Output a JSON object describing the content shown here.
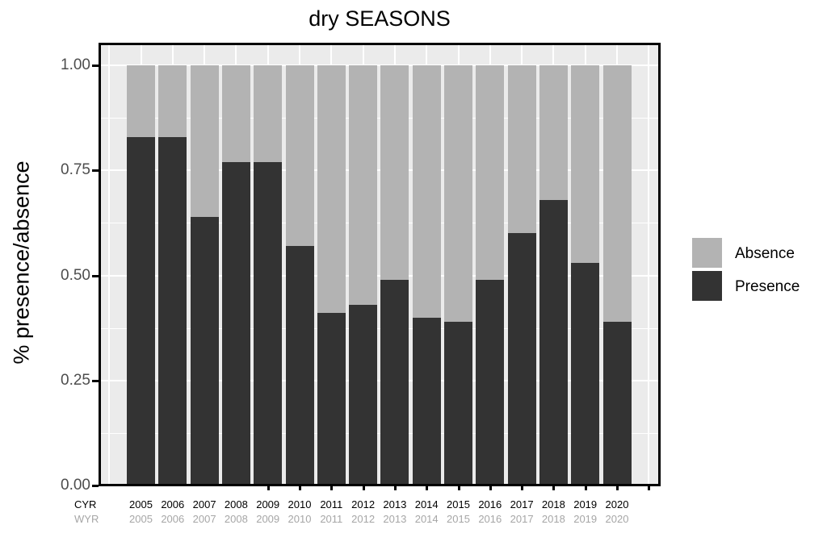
{
  "chart_data": {
    "type": "bar",
    "stacked": true,
    "title": "dry SEASONS",
    "xlabel": "",
    "ylabel": "% presence/absence",
    "ylim": [
      0,
      1
    ],
    "yticks": [
      "0.00",
      "0.25",
      "0.50",
      "0.75",
      "1.00"
    ],
    "categories": [
      "2005",
      "2006",
      "2007",
      "2008",
      "2009",
      "2010",
      "2011",
      "2012",
      "2013",
      "2014",
      "2015",
      "2016",
      "2017",
      "2018",
      "2019",
      "2020"
    ],
    "x_axis_rows": [
      {
        "label": "CYR",
        "values": [
          "2005",
          "2006",
          "2007",
          "2008",
          "2009",
          "2010",
          "2011",
          "2012",
          "2013",
          "2014",
          "2015",
          "2016",
          "2017",
          "2018",
          "2019",
          "2020"
        ]
      },
      {
        "label": "WYR",
        "values": [
          "2005",
          "2006",
          "2007",
          "2008",
          "2009",
          "2010",
          "2011",
          "2012",
          "2013",
          "2014",
          "2015",
          "2016",
          "2017",
          "2018",
          "2019",
          "2020"
        ]
      }
    ],
    "series": [
      {
        "name": "Presence",
        "color": "#333333",
        "values": [
          0.83,
          0.83,
          0.64,
          0.77,
          0.77,
          0.57,
          0.41,
          0.43,
          0.49,
          0.4,
          0.39,
          0.49,
          0.6,
          0.68,
          0.53,
          0.39
        ]
      },
      {
        "name": "Absence",
        "color": "#b3b3b3",
        "values": [
          0.17,
          0.17,
          0.36,
          0.23,
          0.23,
          0.43,
          0.59,
          0.57,
          0.51,
          0.6,
          0.61,
          0.51,
          0.4,
          0.32,
          0.47,
          0.61
        ]
      }
    ],
    "legend": {
      "position": "right",
      "entries": [
        "Absence",
        "Presence"
      ]
    },
    "grid": true
  },
  "labels": {
    "title": "dry SEASONS",
    "ylabel": "% presence/absence",
    "row_cyr": "CYR",
    "row_wyr": "WYR",
    "legend_absence": "Absence",
    "legend_presence": "Presence"
  }
}
